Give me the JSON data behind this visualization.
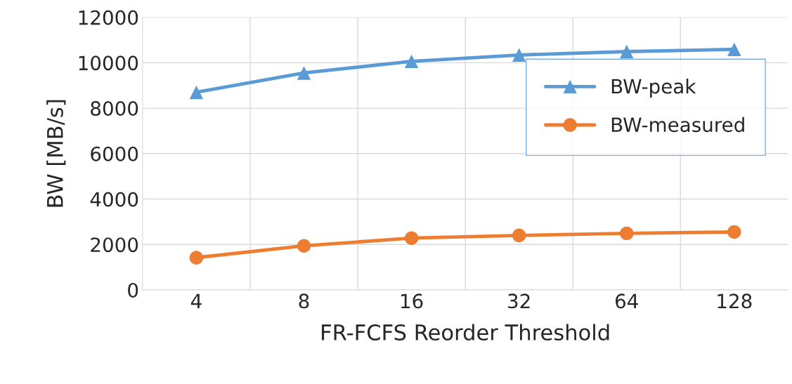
{
  "chart_data": {
    "type": "line",
    "xlabel": "FR-FCFS Reorder Threshold",
    "ylabel": "BW [MB/s]",
    "categories": [
      "4",
      "8",
      "16",
      "32",
      "64",
      "128"
    ],
    "series": [
      {
        "name": "BW-peak",
        "color": "#5b9bd5",
        "marker": "triangle",
        "values": [
          8700,
          9550,
          10060,
          10340,
          10490,
          10590
        ]
      },
      {
        "name": "BW-measured",
        "color": "#ed7d31",
        "marker": "circle",
        "values": [
          1420,
          1940,
          2280,
          2400,
          2490,
          2550
        ]
      }
    ],
    "ylim": [
      0,
      12000
    ],
    "yticks": [
      0,
      2000,
      4000,
      6000,
      8000,
      10000,
      12000
    ],
    "grid": true,
    "legend": "right",
    "line_style": "solid"
  }
}
